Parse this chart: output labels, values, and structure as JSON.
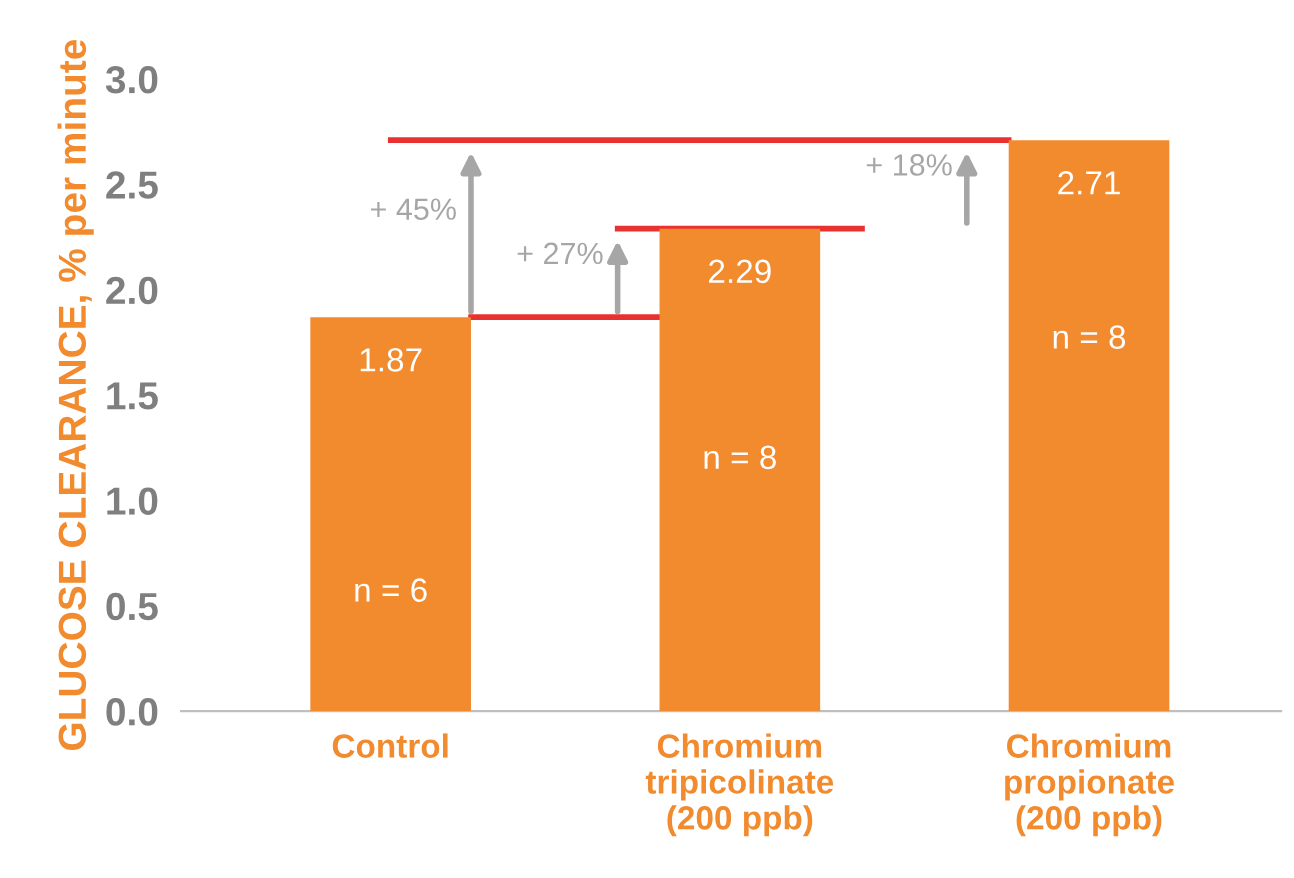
{
  "chart_data": {
    "type": "bar",
    "ylabel": "GLUCOSE CLEARANCE, % per minute",
    "categories": [
      "Control",
      "Chromium\ntripicolinate\n(200 ppb)",
      "Chromium\npropionate\n(200 ppb)"
    ],
    "values": [
      1.87,
      2.29,
      2.71
    ],
    "color": "#f28a2e",
    "data_labels": true,
    "ylim": [
      0,
      3.0
    ],
    "yticks": [
      {
        "value": 0,
        "label": "0.0"
      },
      {
        "value": 0.5,
        "label": "0.5"
      },
      {
        "value": 1,
        "label": "1.0"
      },
      {
        "value": 1.5,
        "label": "1.5"
      },
      {
        "value": 2,
        "label": "2.0"
      },
      {
        "value": 2.5,
        "label": "2.5"
      },
      {
        "value": 3,
        "label": "3.0"
      }
    ],
    "grid": false,
    "ref_lines": [
      {
        "axis": "y",
        "value": 1.87,
        "color": "#e8322f"
      },
      {
        "axis": "y",
        "value": 2.29,
        "color": "#e8322f"
      },
      {
        "axis": "y",
        "value": 2.71,
        "color": "#e8322f"
      }
    ],
    "annotations": [
      "+ 45%",
      "+ 27%",
      "+ 18%",
      "n = 6",
      "n = 8",
      "n = 8"
    ]
  }
}
